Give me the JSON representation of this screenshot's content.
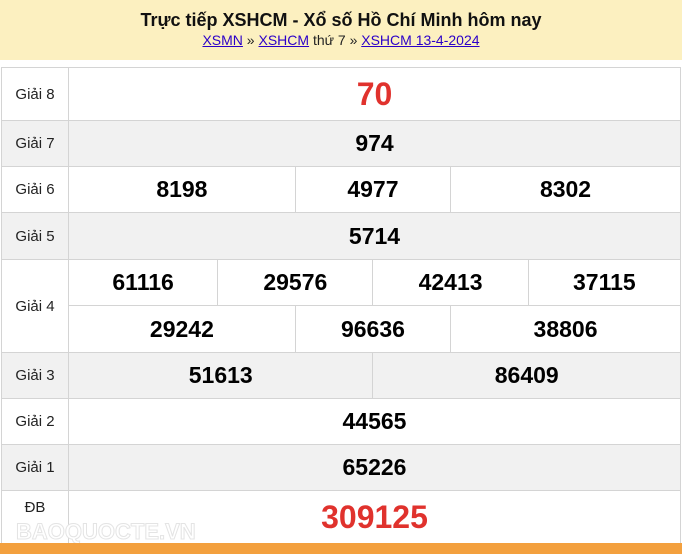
{
  "header": {
    "title": "Trực tiếp XSHCM - Xổ số Hồ Chí Minh hôm nay",
    "breadcrumb": {
      "link1": "XSMN",
      "sep1": " » ",
      "link2": "XSHCM",
      "text": " thứ 7 » ",
      "link3": "XSHCM 13-4-2024"
    }
  },
  "results": {
    "g8": {
      "label": "Giải 8",
      "values": [
        "70"
      ]
    },
    "g7": {
      "label": "Giải 7",
      "values": [
        "974"
      ]
    },
    "g6": {
      "label": "Giải 6",
      "values": [
        "8198",
        "4977",
        "8302"
      ]
    },
    "g5": {
      "label": "Giải 5",
      "values": [
        "5714"
      ]
    },
    "g4": {
      "label": "Giải 4",
      "values": [
        "61116",
        "29576",
        "42413",
        "37115",
        "29242",
        "96636",
        "38806"
      ]
    },
    "g3": {
      "label": "Giải 3",
      "values": [
        "51613",
        "86409"
      ]
    },
    "g2": {
      "label": "Giải 2",
      "values": [
        "44565"
      ]
    },
    "g1": {
      "label": "Giải 1",
      "values": [
        "65226"
      ]
    },
    "db": {
      "label": "ĐB",
      "values": [
        "309125"
      ]
    }
  },
  "watermark": "BAOQUOCTE.VN",
  "colors": {
    "header_bg": "#fcf0c0",
    "special_red": "#e0322d",
    "footer_orange": "#f3a03e"
  }
}
